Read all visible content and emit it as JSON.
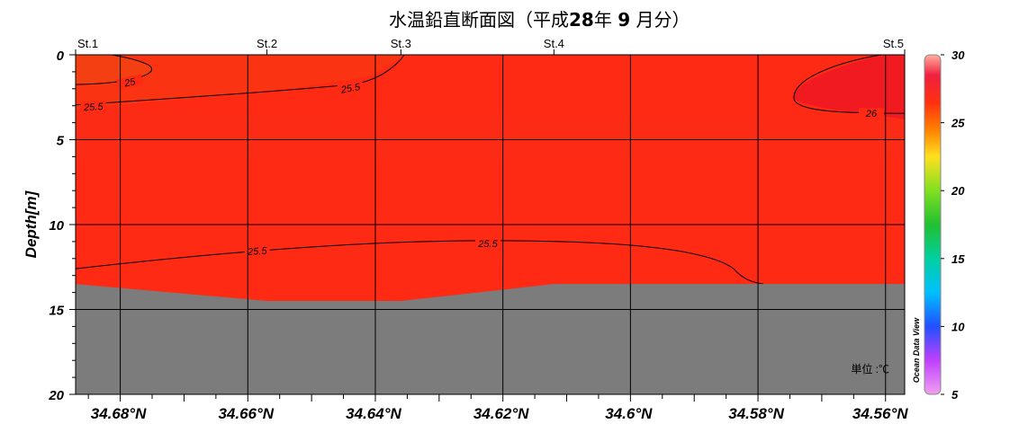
{
  "chart_data": {
    "type": "contour-section",
    "title_parts": [
      "水温鉛直断面図（平成",
      "28",
      "年 ",
      "9",
      " 月分）"
    ],
    "ylabel": "Depth[m]",
    "ylim": [
      0,
      20
    ],
    "y_ticks": [
      "0",
      "5",
      "10",
      "15",
      "20"
    ],
    "x_ticks": [
      "34.68°N",
      "34.66°N",
      "34.64°N",
      "34.62°N",
      "34.6°N",
      "34.58°N",
      "34.56°N"
    ],
    "xlim_north": [
      34.687,
      34.557
    ],
    "stations": [
      {
        "name": "St.1",
        "lat": 34.687
      },
      {
        "name": "St.2",
        "lat": 34.657
      },
      {
        "name": "St.3",
        "lat": 34.636
      },
      {
        "name": "St.4",
        "lat": 34.612
      },
      {
        "name": "St.5",
        "lat": 34.557
      }
    ],
    "bottom_depths_m": [
      13.5,
      14.5,
      14.5,
      13.5,
      13.5
    ],
    "contours": [
      {
        "value": 25,
        "label": "25"
      },
      {
        "value": 25.5,
        "label": "25.5"
      },
      {
        "value": 26,
        "label": "26"
      }
    ],
    "colorbar": {
      "min": 5,
      "max": 30,
      "ticks": [
        "30",
        "25",
        "20",
        "15",
        "10",
        "5"
      ]
    },
    "unit_label": "単位 :℃",
    "watermark": "Ocean Data View",
    "colors": {
      "background": "#ff2a14",
      "warm_patch": "#ef4512",
      "seabed": "#7c7c7c"
    }
  }
}
